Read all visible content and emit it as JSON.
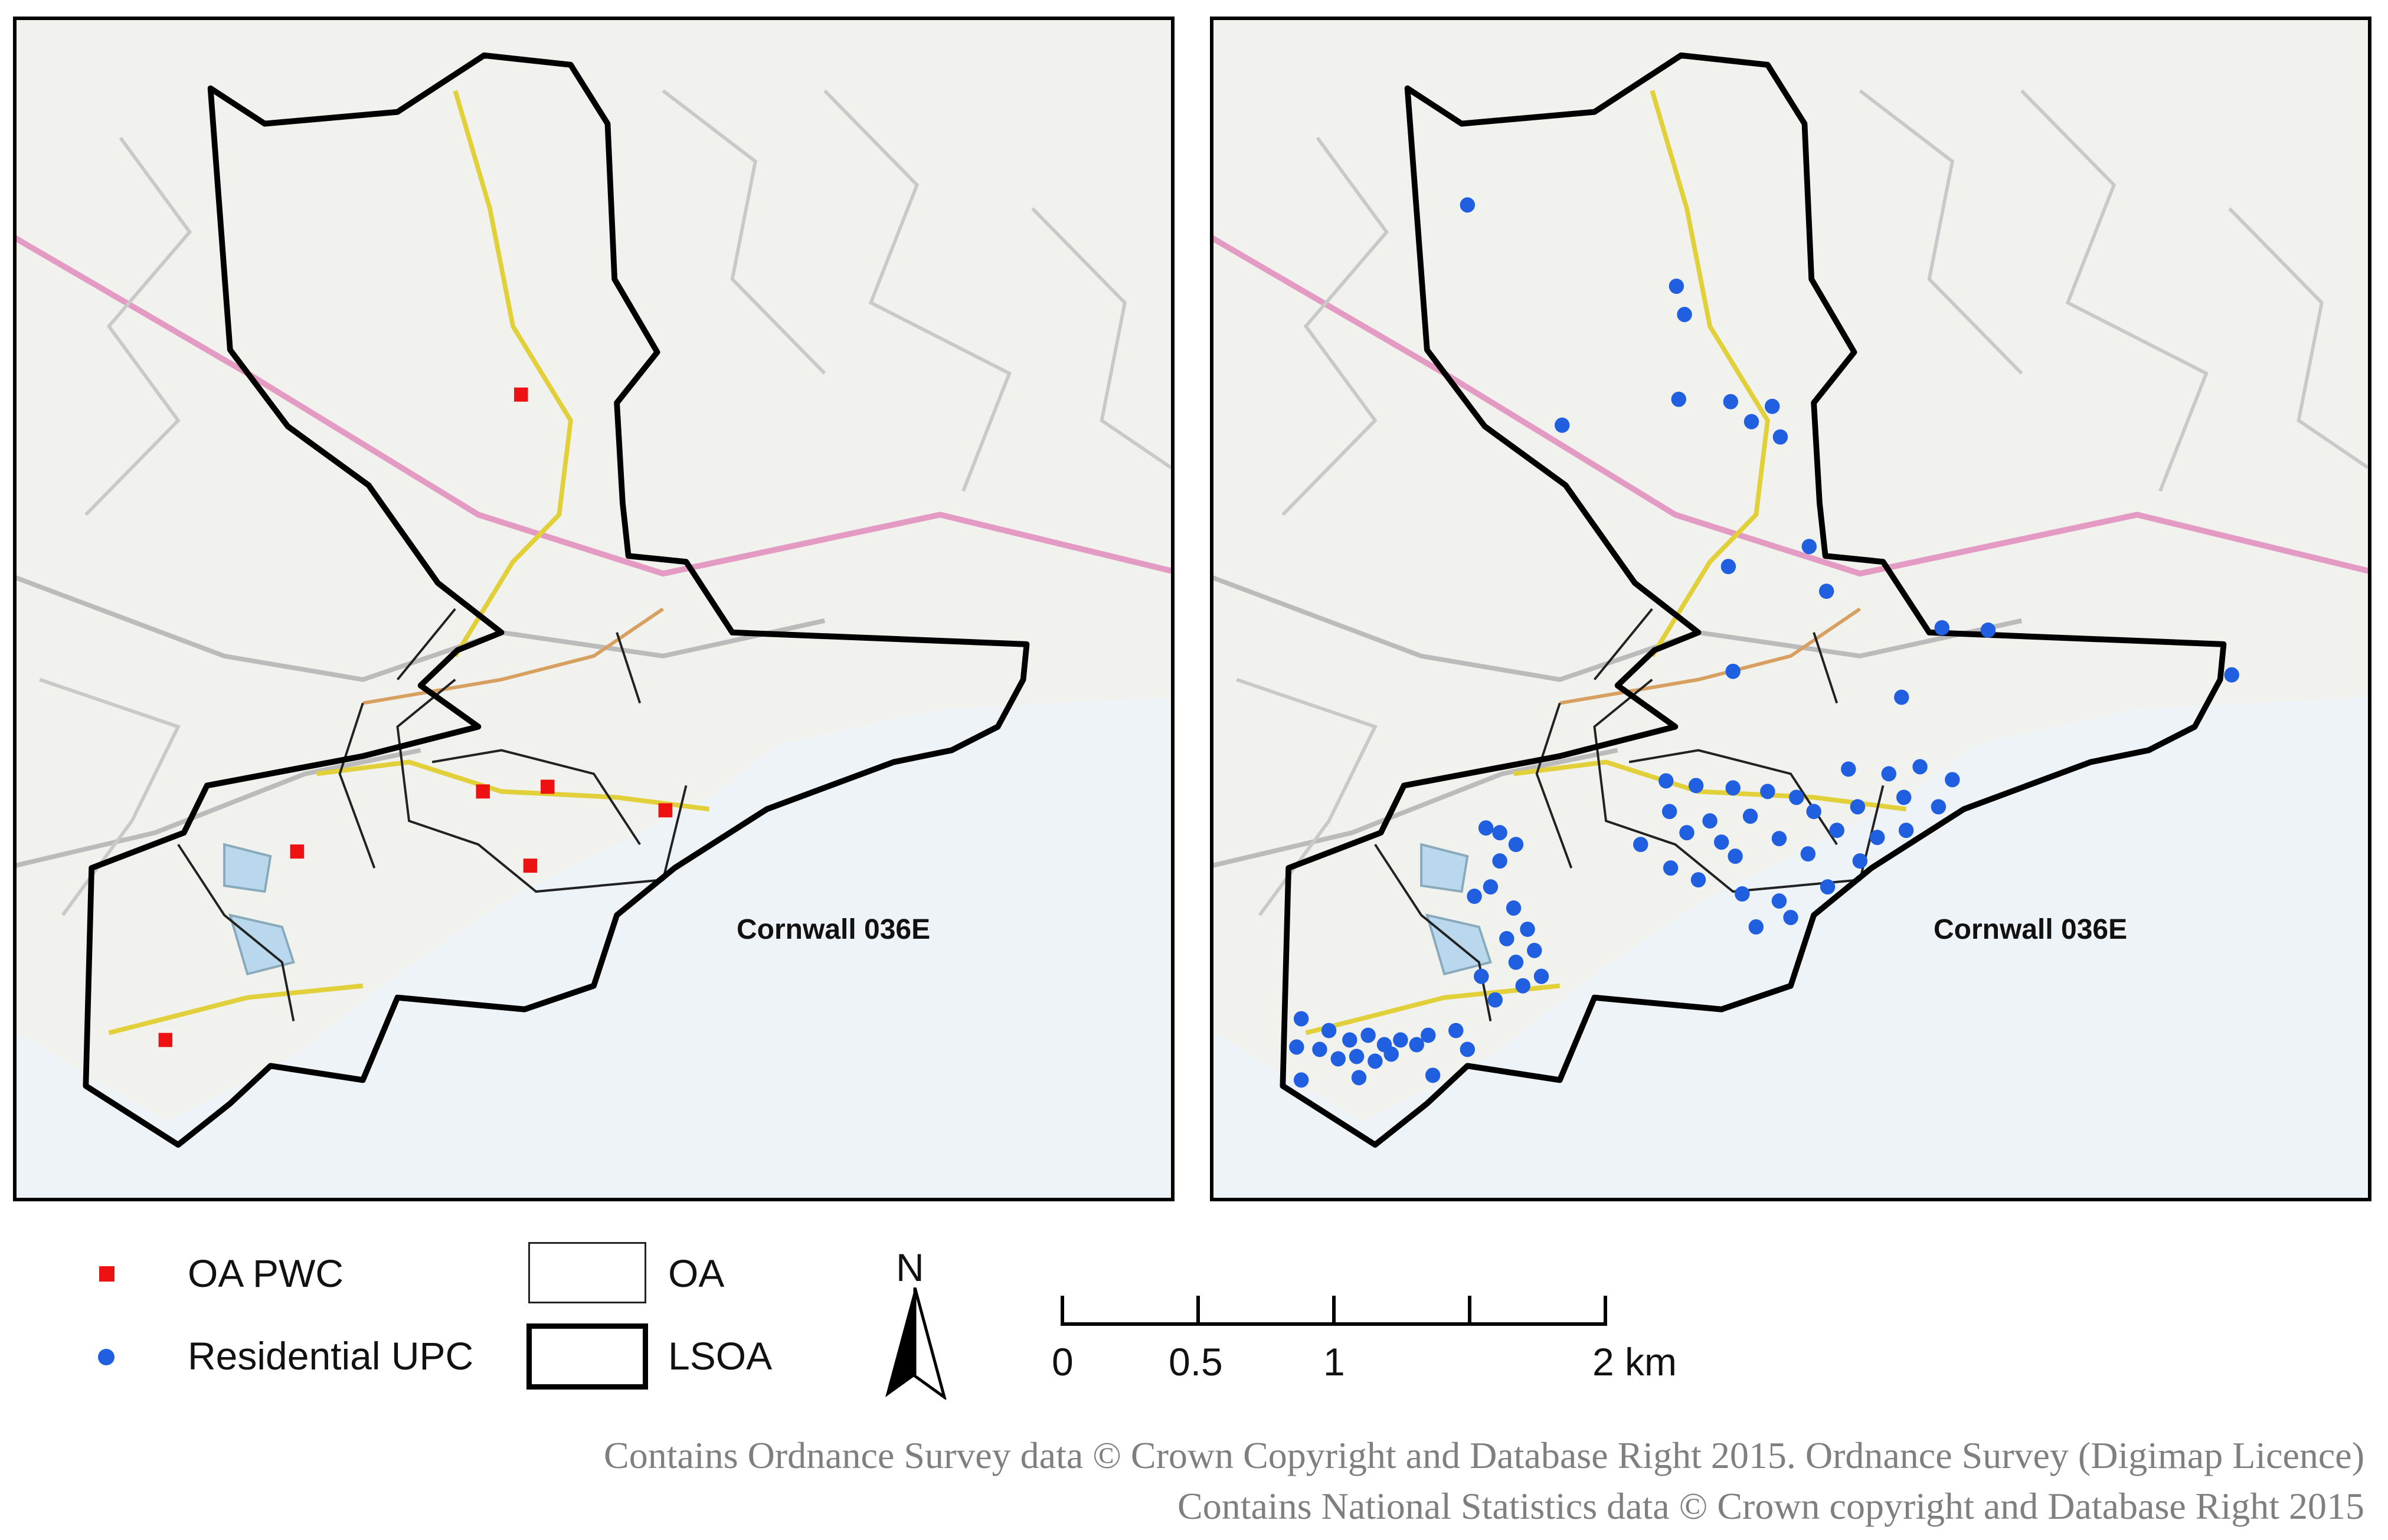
{
  "maps": [
    {
      "id": "left",
      "marker_type": "square",
      "lsoa_label": "Cornwall 036E",
      "points": [
        {
          "x": 0.437,
          "y": 0.318
        },
        {
          "x": 0.404,
          "y": 0.655
        },
        {
          "x": 0.46,
          "y": 0.651
        },
        {
          "x": 0.562,
          "y": 0.671
        },
        {
          "x": 0.243,
          "y": 0.706
        },
        {
          "x": 0.445,
          "y": 0.718
        },
        {
          "x": 0.129,
          "y": 0.866
        }
      ]
    },
    {
      "id": "right",
      "marker_type": "circle",
      "lsoa_label": "Cornwall 036E",
      "points": [
        {
          "x": 0.22,
          "y": 0.157
        },
        {
          "x": 0.401,
          "y": 0.226
        },
        {
          "x": 0.408,
          "y": 0.25
        },
        {
          "x": 0.403,
          "y": 0.322
        },
        {
          "x": 0.448,
          "y": 0.324
        },
        {
          "x": 0.466,
          "y": 0.341
        },
        {
          "x": 0.484,
          "y": 0.328
        },
        {
          "x": 0.491,
          "y": 0.354
        },
        {
          "x": 0.302,
          "y": 0.344
        },
        {
          "x": 0.516,
          "y": 0.447
        },
        {
          "x": 0.446,
          "y": 0.464
        },
        {
          "x": 0.531,
          "y": 0.485
        },
        {
          "x": 0.631,
          "y": 0.516
        },
        {
          "x": 0.671,
          "y": 0.518
        },
        {
          "x": 0.882,
          "y": 0.556
        },
        {
          "x": 0.45,
          "y": 0.553
        },
        {
          "x": 0.596,
          "y": 0.575
        },
        {
          "x": 0.392,
          "y": 0.646
        },
        {
          "x": 0.418,
          "y": 0.65
        },
        {
          "x": 0.45,
          "y": 0.652
        },
        {
          "x": 0.48,
          "y": 0.655
        },
        {
          "x": 0.505,
          "y": 0.66
        },
        {
          "x": 0.55,
          "y": 0.636
        },
        {
          "x": 0.585,
          "y": 0.64
        },
        {
          "x": 0.612,
          "y": 0.634
        },
        {
          "x": 0.64,
          "y": 0.645
        },
        {
          "x": 0.395,
          "y": 0.672
        },
        {
          "x": 0.43,
          "y": 0.68
        },
        {
          "x": 0.465,
          "y": 0.676
        },
        {
          "x": 0.52,
          "y": 0.672
        },
        {
          "x": 0.558,
          "y": 0.668
        },
        {
          "x": 0.598,
          "y": 0.66
        },
        {
          "x": 0.628,
          "y": 0.668
        },
        {
          "x": 0.41,
          "y": 0.69
        },
        {
          "x": 0.44,
          "y": 0.698
        },
        {
          "x": 0.49,
          "y": 0.695
        },
        {
          "x": 0.54,
          "y": 0.688
        },
        {
          "x": 0.575,
          "y": 0.694
        },
        {
          "x": 0.6,
          "y": 0.688
        },
        {
          "x": 0.37,
          "y": 0.7
        },
        {
          "x": 0.452,
          "y": 0.71
        },
        {
          "x": 0.515,
          "y": 0.708
        },
        {
          "x": 0.56,
          "y": 0.714
        },
        {
          "x": 0.236,
          "y": 0.686
        },
        {
          "x": 0.248,
          "y": 0.69
        },
        {
          "x": 0.262,
          "y": 0.7
        },
        {
          "x": 0.248,
          "y": 0.714
        },
        {
          "x": 0.24,
          "y": 0.736
        },
        {
          "x": 0.226,
          "y": 0.744
        },
        {
          "x": 0.396,
          "y": 0.72
        },
        {
          "x": 0.42,
          "y": 0.73
        },
        {
          "x": 0.458,
          "y": 0.742
        },
        {
          "x": 0.49,
          "y": 0.748
        },
        {
          "x": 0.532,
          "y": 0.736
        },
        {
          "x": 0.47,
          "y": 0.77
        },
        {
          "x": 0.5,
          "y": 0.762
        },
        {
          "x": 0.26,
          "y": 0.754
        },
        {
          "x": 0.272,
          "y": 0.772
        },
        {
          "x": 0.254,
          "y": 0.78
        },
        {
          "x": 0.278,
          "y": 0.79
        },
        {
          "x": 0.262,
          "y": 0.8
        },
        {
          "x": 0.284,
          "y": 0.812
        },
        {
          "x": 0.268,
          "y": 0.82
        },
        {
          "x": 0.232,
          "y": 0.812
        },
        {
          "x": 0.244,
          "y": 0.832
        },
        {
          "x": 0.076,
          "y": 0.848
        },
        {
          "x": 0.1,
          "y": 0.858
        },
        {
          "x": 0.118,
          "y": 0.866
        },
        {
          "x": 0.134,
          "y": 0.862
        },
        {
          "x": 0.148,
          "y": 0.87
        },
        {
          "x": 0.162,
          "y": 0.866
        },
        {
          "x": 0.176,
          "y": 0.87
        },
        {
          "x": 0.092,
          "y": 0.874
        },
        {
          "x": 0.108,
          "y": 0.882
        },
        {
          "x": 0.124,
          "y": 0.88
        },
        {
          "x": 0.14,
          "y": 0.884
        },
        {
          "x": 0.154,
          "y": 0.878
        },
        {
          "x": 0.186,
          "y": 0.862
        },
        {
          "x": 0.21,
          "y": 0.858
        },
        {
          "x": 0.22,
          "y": 0.874
        },
        {
          "x": 0.072,
          "y": 0.872
        },
        {
          "x": 0.076,
          "y": 0.9
        },
        {
          "x": 0.126,
          "y": 0.898
        },
        {
          "x": 0.19,
          "y": 0.896
        }
      ]
    }
  ],
  "legend": {
    "oa_pwc": "OA PWC",
    "residential_upc": "Residential UPC",
    "oa": "OA",
    "lsoa": "LSOA"
  },
  "north_label": "N",
  "scale_labels": [
    "0",
    "0.5",
    "1",
    "2 km"
  ],
  "credits": [
    "Contains Ordnance Survey data © Crown Copyright and Database Right 2015. Ordnance Survey (Digimap Licence)",
    "Contains National Statistics data © Crown copyright and Database Right 2015"
  ],
  "colors": {
    "oa_pwc_marker": "#ee1111",
    "residential_upc_marker": "#1f5fe0",
    "sea": "#eef3f8",
    "lsoa_boundary": "#000000"
  }
}
